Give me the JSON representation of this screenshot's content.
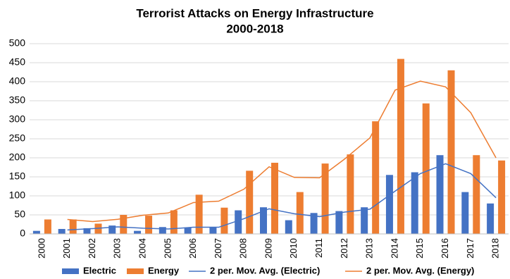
{
  "chart_data": {
    "type": "bar",
    "title": "Terrorist Attacks on Energy Infrastructure",
    "subtitle": "2000-2018",
    "categories": [
      "2000",
      "2001",
      "2002",
      "2003",
      "2004",
      "2005",
      "2006",
      "2007",
      "2008",
      "2009",
      "2010",
      "2011",
      "2012",
      "2013",
      "2014",
      "2015",
      "2016",
      "2017",
      "2018"
    ],
    "series": [
      {
        "name": "Electric",
        "type": "bar",
        "color": "#4472c4",
        "values": [
          8,
          13,
          15,
          22,
          8,
          18,
          17,
          18,
          62,
          70,
          36,
          55,
          60,
          70,
          155,
          162,
          207,
          110,
          80
        ]
      },
      {
        "name": "Energy",
        "type": "bar",
        "color": "#ed7d31",
        "values": [
          38,
          38,
          27,
          50,
          48,
          62,
          103,
          69,
          166,
          187,
          110,
          185,
          209,
          296,
          460,
          343,
          430,
          207,
          193
        ]
      },
      {
        "name": "2 per. Mov. Avg. (Electric)",
        "type": "line",
        "color": "#4472c4",
        "values": [
          null,
          10.5,
          14,
          18.5,
          15,
          13,
          17.5,
          17.5,
          40,
          66,
          53,
          45.5,
          57.5,
          65,
          112.5,
          158.5,
          184.5,
          158.5,
          95
        ]
      },
      {
        "name": "2 per. Mov. Avg. (Energy)",
        "type": "line",
        "color": "#ed7d31",
        "values": [
          null,
          38,
          32.5,
          38.5,
          49,
          55,
          82.5,
          86,
          117.5,
          176.5,
          148.5,
          147.5,
          197,
          252.5,
          378,
          401.5,
          386.5,
          318.5,
          200
        ]
      }
    ],
    "ylim": [
      0,
      500
    ],
    "yticks": [
      0,
      50,
      100,
      150,
      200,
      250,
      300,
      350,
      400,
      450,
      500
    ],
    "grid": true,
    "legend": "bottom"
  }
}
